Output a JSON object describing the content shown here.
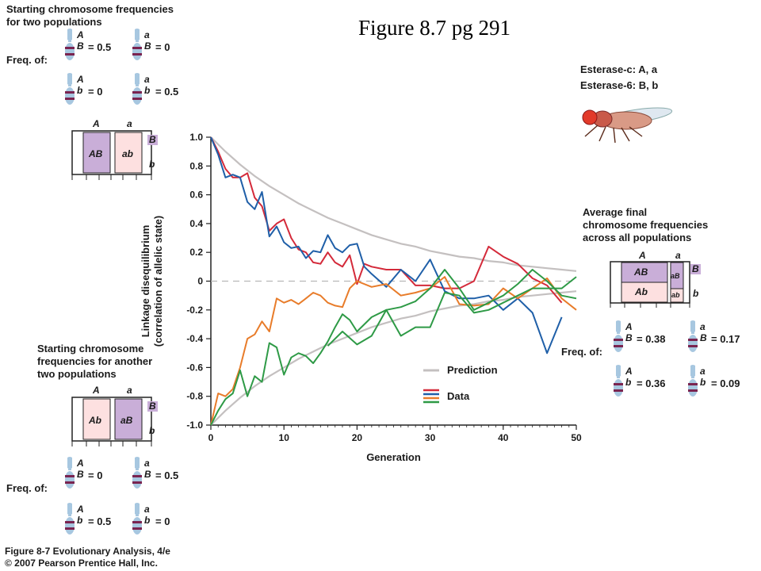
{
  "figure_title": "Figure 8.7 pg 291",
  "top_left": {
    "heading_line1": "Starting chromosome frequencies",
    "heading_line2": "for two populations",
    "freq_label": "Freq. of:",
    "pairs": [
      {
        "top": "A",
        "bottom": "B",
        "value": "= 0.5"
      },
      {
        "top": "a",
        "bottom": "B",
        "value": "= 0"
      },
      {
        "top": "A",
        "bottom": "b",
        "value": "= 0"
      },
      {
        "top": "a",
        "bottom": "b",
        "value": "= 0.5"
      }
    ],
    "box": {
      "col1": "A",
      "col2": "a",
      "cell1": "AB",
      "cell2": "ab",
      "row1": "B",
      "row2": "b"
    }
  },
  "bottom_left": {
    "heading_line1": "Starting chromosome",
    "heading_line2": "frequencies for another",
    "heading_line3": "two populations",
    "freq_label": "Freq. of:",
    "pairs": [
      {
        "top": "A",
        "bottom": "B",
        "value": "= 0"
      },
      {
        "top": "a",
        "bottom": "B",
        "value": "= 0.5"
      },
      {
        "top": "A",
        "bottom": "b",
        "value": "= 0.5"
      },
      {
        "top": "a",
        "bottom": "b",
        "value": "= 0"
      }
    ],
    "box": {
      "col1": "A",
      "col2": "a",
      "cell1": "Ab",
      "cell2": "aB",
      "row1": "B",
      "row2": "b"
    }
  },
  "right": {
    "esterase_c": "Esterase-c: A, a",
    "esterase_6": "Esterase-6: B, b",
    "heading_line1": "Average final",
    "heading_line2": "chromosome frequencies",
    "heading_line3": "across all populations",
    "freq_label": "Freq. of:",
    "pairs": [
      {
        "top": "A",
        "bottom": "B",
        "value": "= 0.38"
      },
      {
        "top": "a",
        "bottom": "B",
        "value": "= 0.17"
      },
      {
        "top": "A",
        "bottom": "b",
        "value": "= 0.36"
      },
      {
        "top": "a",
        "bottom": "b",
        "value": "= 0.09"
      }
    ],
    "box": {
      "col1": "A",
      "col2": "a",
      "cellAB": "AB",
      "cellAb": "Ab",
      "cellaB": "aB",
      "cellab": "ab",
      "row1": "B",
      "row2": "b"
    }
  },
  "caption_line1": "Figure 8-7  Evolutionary Analysis, 4/e",
  "caption_line2": "© 2007 Pearson Prentice Hall, Inc.",
  "colors": {
    "red": "#d42a3a",
    "blue": "#1f5fa8",
    "orange": "#e87c2a",
    "green": "#2e9a46",
    "prediction": "#c4c0c0",
    "pink": "#fde0e0",
    "purple": "#c9aed8",
    "chrom": "#a7c7e0",
    "band": "#7a2450"
  },
  "chart_data": {
    "type": "line",
    "xlabel": "Generation",
    "ylabel_line1": "Linkage disequilibrium",
    "ylabel_line2": "(correlation of allelic state)",
    "xlim": [
      0,
      50
    ],
    "ylim": [
      -1.0,
      1.0
    ],
    "xticks": [
      0,
      10,
      20,
      30,
      40,
      50
    ],
    "yticks": [
      1.0,
      0.8,
      0.6,
      0.4,
      0.2,
      0,
      -0.2,
      -0.4,
      -0.6,
      -0.8,
      -1.0
    ],
    "ytick_labels": [
      "1.0",
      "0.8",
      "0.6",
      "0.4",
      "0.2",
      "0",
      "-0.2",
      "-0.4",
      "-0.6",
      "-0.8",
      "-1.0"
    ],
    "legend": {
      "prediction": "Prediction",
      "data": "Data",
      "placement": "bottom-right"
    },
    "zero_line_dashed": true,
    "prediction": {
      "positive": {
        "x": [
          0,
          2,
          4,
          6,
          8,
          10,
          12,
          14,
          16,
          18,
          20,
          22,
          24,
          26,
          28,
          30,
          32,
          34,
          36,
          38,
          40,
          42,
          44,
          46,
          48,
          50
        ],
        "y": [
          1.0,
          0.9,
          0.81,
          0.73,
          0.66,
          0.6,
          0.54,
          0.49,
          0.44,
          0.4,
          0.36,
          0.32,
          0.29,
          0.26,
          0.24,
          0.21,
          0.19,
          0.17,
          0.16,
          0.14,
          0.13,
          0.11,
          0.1,
          0.09,
          0.08,
          0.07
        ]
      },
      "negative": {
        "x": [
          0,
          2,
          4,
          6,
          8,
          10,
          12,
          14,
          16,
          18,
          20,
          22,
          24,
          26,
          28,
          30,
          32,
          34,
          36,
          38,
          40,
          42,
          44,
          46,
          48,
          50
        ],
        "y": [
          -1.0,
          -0.9,
          -0.81,
          -0.73,
          -0.66,
          -0.6,
          -0.54,
          -0.49,
          -0.44,
          -0.4,
          -0.36,
          -0.32,
          -0.29,
          -0.26,
          -0.24,
          -0.21,
          -0.19,
          -0.17,
          -0.16,
          -0.14,
          -0.13,
          -0.11,
          -0.1,
          -0.09,
          -0.08,
          -0.07
        ]
      }
    },
    "series": [
      {
        "color": "red",
        "x": [
          0,
          1,
          2,
          3,
          4,
          5,
          6,
          7,
          8,
          9,
          10,
          11,
          12,
          13,
          14,
          15,
          16,
          17,
          18,
          19,
          20,
          21,
          22,
          24,
          26,
          28,
          30,
          32,
          34,
          36,
          38,
          40,
          42,
          44,
          46,
          48
        ],
        "y": [
          1.0,
          0.9,
          0.78,
          0.72,
          0.72,
          0.75,
          0.58,
          0.52,
          0.35,
          0.4,
          0.43,
          0.3,
          0.22,
          0.2,
          0.13,
          0.12,
          0.2,
          0.13,
          0.1,
          0.18,
          -0.02,
          0.12,
          0.1,
          0.08,
          0.08,
          -0.03,
          -0.03,
          -0.05,
          -0.05,
          0.0,
          0.24,
          0.17,
          0.12,
          0.02,
          -0.03,
          -0.15
        ]
      },
      {
        "color": "blue",
        "x": [
          0,
          1,
          2,
          3,
          4,
          5,
          6,
          7,
          8,
          9,
          10,
          11,
          12,
          13,
          14,
          15,
          16,
          17,
          18,
          19,
          20,
          21,
          22,
          24,
          26,
          28,
          30,
          32,
          34,
          36,
          38,
          40,
          42,
          44,
          46,
          48
        ],
        "y": [
          1.0,
          0.88,
          0.72,
          0.74,
          0.72,
          0.55,
          0.5,
          0.62,
          0.31,
          0.38,
          0.27,
          0.23,
          0.24,
          0.16,
          0.21,
          0.2,
          0.32,
          0.23,
          0.2,
          0.25,
          0.26,
          0.1,
          0.05,
          -0.04,
          0.08,
          0.0,
          0.15,
          -0.07,
          -0.12,
          -0.12,
          -0.1,
          -0.2,
          -0.12,
          -0.22,
          -0.5,
          -0.25
        ]
      },
      {
        "color": "orange",
        "x": [
          0,
          1,
          2,
          3,
          4,
          5,
          6,
          7,
          8,
          9,
          10,
          11,
          12,
          13,
          14,
          15,
          16,
          17,
          18,
          19,
          20,
          22,
          24,
          26,
          28,
          30,
          32,
          34,
          36,
          38,
          40,
          42,
          44,
          46,
          48,
          50
        ],
        "y": [
          -1.0,
          -0.78,
          -0.8,
          -0.75,
          -0.6,
          -0.4,
          -0.37,
          -0.28,
          -0.35,
          -0.12,
          -0.15,
          -0.13,
          -0.16,
          -0.12,
          -0.08,
          -0.1,
          -0.15,
          -0.17,
          -0.18,
          -0.05,
          0.0,
          -0.04,
          -0.02,
          -0.1,
          -0.08,
          -0.05,
          0.03,
          -0.16,
          -0.17,
          -0.16,
          -0.05,
          -0.12,
          -0.05,
          0.02,
          -0.12,
          -0.2
        ]
      },
      {
        "color": "green",
        "x": [
          0,
          1,
          2,
          3,
          4,
          5,
          6,
          7,
          8,
          9,
          10,
          11,
          12,
          13,
          14,
          15,
          16,
          17,
          18,
          19,
          20,
          22,
          24,
          26,
          28,
          30,
          32,
          34,
          36,
          38,
          40,
          42,
          44,
          46,
          48,
          50
        ],
        "y": [
          -1.0,
          -0.9,
          -0.82,
          -0.78,
          -0.62,
          -0.8,
          -0.66,
          -0.7,
          -0.43,
          -0.46,
          -0.65,
          -0.53,
          -0.5,
          -0.52,
          -0.57,
          -0.5,
          -0.42,
          -0.32,
          -0.23,
          -0.27,
          -0.35,
          -0.25,
          -0.2,
          -0.18,
          -0.14,
          -0.05,
          0.08,
          -0.05,
          -0.2,
          -0.15,
          -0.1,
          -0.02,
          0.08,
          0.0,
          -0.1,
          -0.12
        ]
      },
      {
        "color": "green",
        "x": [
          16,
          18,
          20,
          22,
          24,
          26,
          28,
          30,
          32,
          34,
          36,
          38,
          40,
          42,
          44,
          46,
          48,
          50
        ],
        "y": [
          -0.45,
          -0.35,
          -0.44,
          -0.38,
          -0.2,
          -0.38,
          -0.32,
          -0.32,
          -0.08,
          -0.1,
          -0.22,
          -0.2,
          -0.15,
          -0.1,
          -0.05,
          -0.05,
          -0.05,
          0.03
        ]
      }
    ]
  }
}
